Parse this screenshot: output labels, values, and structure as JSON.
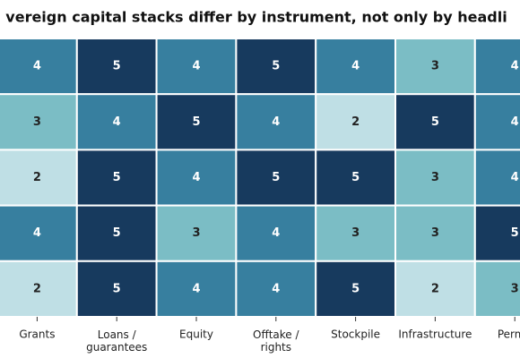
{
  "chart_data": {
    "type": "heatmap",
    "title": "vereign capital stacks differ by instrument, not only by headli",
    "categories": [
      "Grants",
      "Loans /\nguarantees",
      "Equity",
      "Offtake /\nrights",
      "Stockpile",
      "Infrastructure",
      "Permit"
    ],
    "values": [
      [
        4,
        5,
        4,
        5,
        4,
        3,
        4
      ],
      [
        3,
        4,
        5,
        4,
        2,
        5,
        4
      ],
      [
        2,
        5,
        4,
        5,
        5,
        3,
        4
      ],
      [
        4,
        5,
        3,
        4,
        3,
        3,
        5
      ],
      [
        2,
        5,
        4,
        4,
        5,
        2,
        3
      ]
    ],
    "colors": {
      "2": "#bfdfe5",
      "3": "#7bbdc5",
      "4": "#377f9f",
      "5": "#173a5e"
    }
  }
}
